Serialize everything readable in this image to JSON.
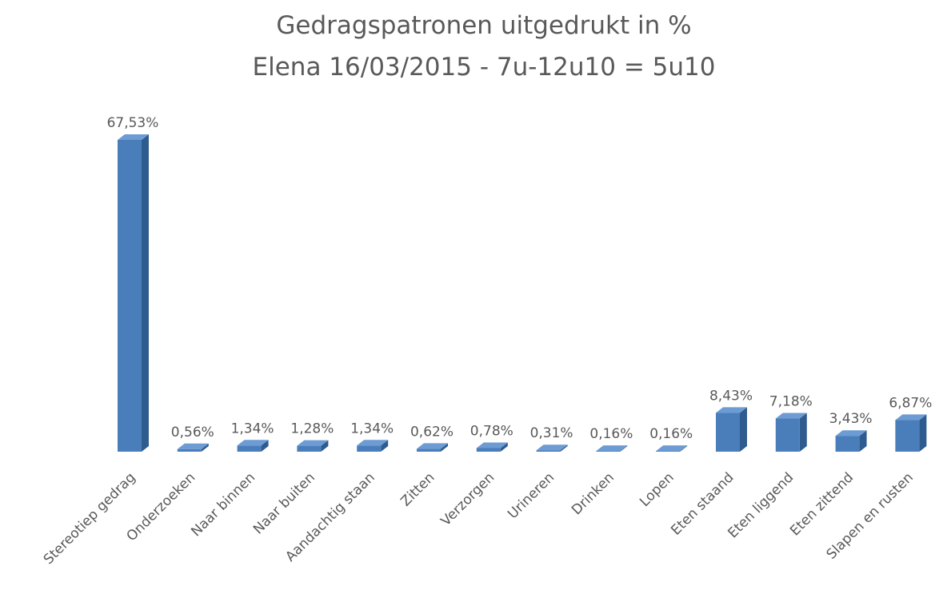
{
  "chart_data": {
    "type": "bar3d",
    "title": "Gedragspatronen uitgedrukt in %",
    "subtitle": "Elena 16/03/2015 - 7u-12u10 = 5u10",
    "categories": [
      "Stereotiep gedrag",
      "Onderzoeken",
      "Naar binnen",
      "Naar buiten",
      "Aandachtig staan",
      "Zitten",
      "Verzorgen",
      "Urineren",
      "Drinken",
      "Lopen",
      "Eten staand",
      "Eten liggend",
      "Eten zittend",
      "Slapen en rusten"
    ],
    "values": [
      67.53,
      0.56,
      1.34,
      1.28,
      1.34,
      0.62,
      0.78,
      0.31,
      0.16,
      0.16,
      8.43,
      7.18,
      3.43,
      6.87
    ],
    "value_labels": [
      "67,53%",
      "0,56%",
      "1,34%",
      "1,28%",
      "1,34%",
      "0,62%",
      "0,78%",
      "0,31%",
      "0,16%",
      "0,16%",
      "8,43%",
      "7,18%",
      "3,43%",
      "6,87%"
    ],
    "color": "#4a7ebb"
  }
}
